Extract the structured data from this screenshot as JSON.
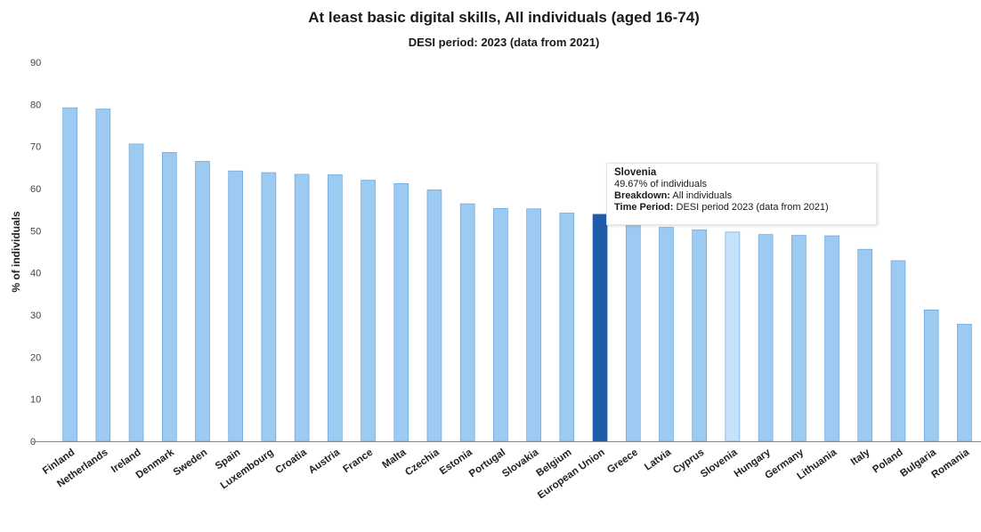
{
  "chart_data": {
    "type": "bar",
    "title": "At least basic digital skills, All individuals (aged 16-74)",
    "subtitle": "DESI period: 2023 (data from 2021)",
    "ylabel": "% of individuals",
    "xlabel": "",
    "ylim": [
      0,
      90
    ],
    "yticks": [
      0,
      10,
      20,
      30,
      40,
      50,
      60,
      70,
      80,
      90
    ],
    "grid": false,
    "legend": "none",
    "categories": [
      "Finland",
      "Netherlands",
      "Ireland",
      "Denmark",
      "Sweden",
      "Spain",
      "Luxembourg",
      "Croatia",
      "Austria",
      "France",
      "Malta",
      "Czechia",
      "Estonia",
      "Portugal",
      "Slovakia",
      "Belgium",
      "European Union",
      "Greece",
      "Latvia",
      "Cyprus",
      "Slovenia",
      "Hungary",
      "Germany",
      "Lithuania",
      "Italy",
      "Poland",
      "Bulgaria",
      "Romania"
    ],
    "values": [
      79.2,
      78.9,
      70.6,
      68.6,
      66.5,
      64.2,
      63.8,
      63.4,
      63.3,
      62.0,
      61.2,
      59.7,
      56.4,
      55.3,
      55.2,
      54.2,
      53.9,
      52.5,
      50.8,
      50.2,
      49.67,
      49.1,
      48.9,
      48.8,
      45.6,
      42.9,
      31.2,
      27.8
    ],
    "highlight": "European Union",
    "hovered": "Slovenia",
    "colors": {
      "bar": "#9dcaf0",
      "bar_edge": "#5e9ddc",
      "highlight": "#1f5dab",
      "hovered": "#c4e2fa",
      "axis": "#888888"
    }
  },
  "tooltip": {
    "name": "Slovenia",
    "value_text": "49.67% of individuals",
    "breakdown_label": "Breakdown:",
    "breakdown_value": "All individuals",
    "period_label": "Time Period:",
    "period_value": "DESI period  2023 (data from 2021)"
  }
}
